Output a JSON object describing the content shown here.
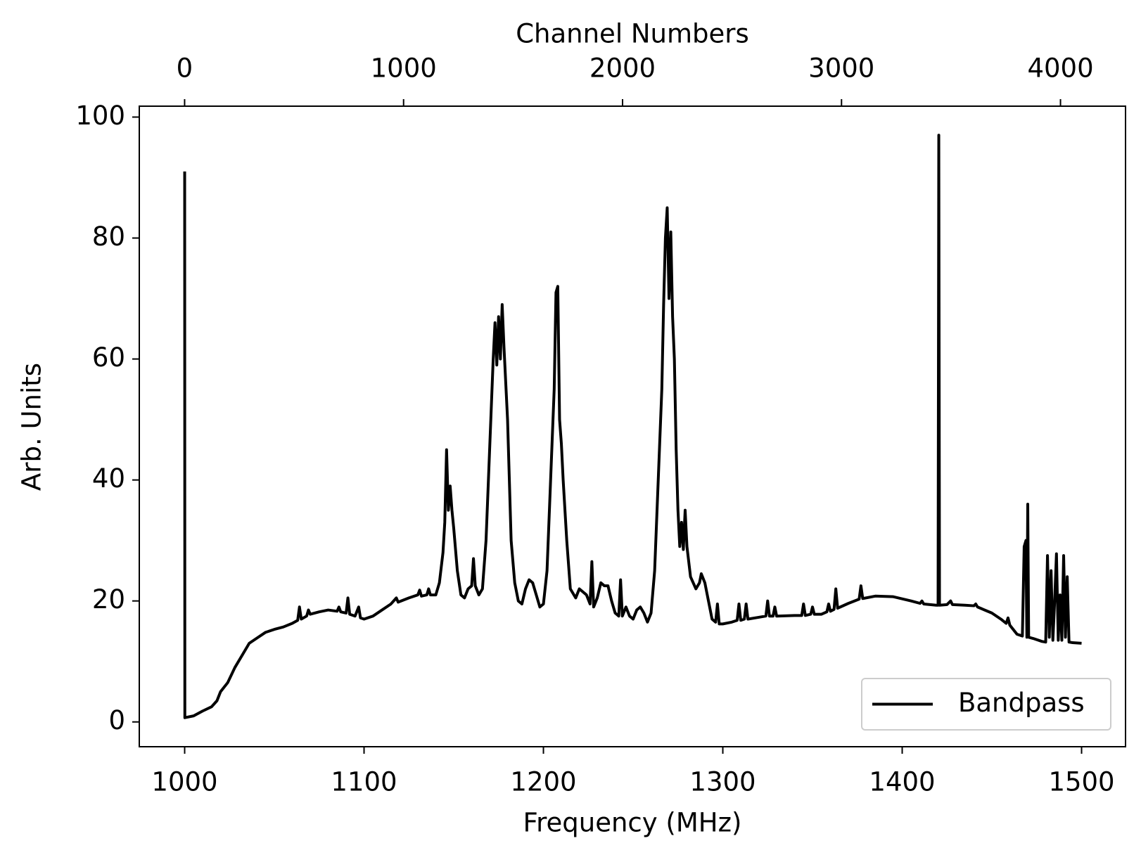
{
  "chart_data": {
    "type": "line",
    "xlabel": "Frequency (MHz)",
    "ylabel": "Arb. Units",
    "x2label": "Channel Numbers",
    "xlim": [
      974.7,
      1524.5
    ],
    "xticks": [
      1000,
      1100,
      1200,
      1300,
      1400,
      1500
    ],
    "x2lim": [
      -207,
      4297
    ],
    "x2ticks": [
      0,
      1000,
      2000,
      3000,
      4000
    ],
    "ylim": [
      -4.1,
      101.8
    ],
    "yticks": [
      0,
      20,
      40,
      60,
      80,
      100
    ],
    "legend": "lower right",
    "grid": false,
    "x": [
      1000,
      1000.1,
      1005,
      1010,
      1015,
      1018,
      1020,
      1024,
      1028,
      1032,
      1036,
      1040,
      1045,
      1050,
      1055,
      1060,
      1063,
      1064,
      1065,
      1068,
      1069,
      1070,
      1075,
      1080,
      1085,
      1086,
      1087,
      1090,
      1091,
      1092,
      1095,
      1097,
      1098,
      1100,
      1105,
      1110,
      1115,
      1118,
      1119,
      1125,
      1130,
      1131,
      1132,
      1135,
      1136,
      1137,
      1140,
      1142,
      1144,
      1145,
      1146,
      1147,
      1148,
      1149,
      1150,
      1152,
      1154,
      1156,
      1158,
      1160,
      1161,
      1162,
      1164,
      1166,
      1168,
      1170,
      1172,
      1173,
      1174,
      1175,
      1176,
      1177,
      1178,
      1180,
      1182,
      1184,
      1186,
      1188,
      1190,
      1192,
      1194,
      1196,
      1198,
      1200,
      1202,
      1204,
      1206,
      1207,
      1208,
      1209,
      1210,
      1211,
      1213,
      1215,
      1218,
      1220,
      1222,
      1224,
      1226,
      1227,
      1228,
      1230,
      1232,
      1234,
      1236,
      1238,
      1240,
      1242,
      1243,
      1244,
      1246,
      1248,
      1250,
      1252,
      1254,
      1256,
      1258,
      1260,
      1262,
      1264,
      1266,
      1267,
      1268,
      1269,
      1270,
      1271,
      1272,
      1273,
      1274,
      1275,
      1276,
      1277,
      1278,
      1279,
      1280,
      1282,
      1285,
      1287,
      1288,
      1290,
      1292,
      1294,
      1296,
      1297,
      1298,
      1300,
      1305,
      1308,
      1309,
      1310,
      1312,
      1313,
      1314,
      1320,
      1324,
      1325,
      1326,
      1328,
      1329,
      1330,
      1340,
      1344,
      1345,
      1346,
      1349,
      1350,
      1351,
      1355,
      1358,
      1359,
      1360,
      1362,
      1363,
      1364,
      1370,
      1376,
      1377,
      1378,
      1385,
      1395,
      1405,
      1410,
      1411,
      1412,
      1419,
      1420,
      1420.4,
      1420.8,
      1425,
      1427,
      1428,
      1435,
      1440,
      1441,
      1442,
      1450,
      1455,
      1458,
      1459,
      1460,
      1464,
      1467,
      1468,
      1469,
      1469.5,
      1470,
      1470.5,
      1473,
      1478,
      1480,
      1481,
      1482,
      1483,
      1484,
      1485,
      1486,
      1487,
      1488,
      1489,
      1490,
      1491,
      1492,
      1493,
      1495,
      1500
    ],
    "series": [
      {
        "name": "Bandpass",
        "color": "#000000",
        "values": [
          91,
          0.7,
          1.0,
          1.8,
          2.5,
          3.5,
          5,
          6.5,
          9,
          11,
          13,
          13.8,
          14.8,
          15.3,
          15.7,
          16.3,
          16.8,
          19,
          17,
          17.5,
          18.5,
          17.8,
          18.2,
          18.5,
          18.3,
          19,
          18.2,
          18,
          20.5,
          17.8,
          17.5,
          19,
          17.2,
          17,
          17.5,
          18.5,
          19.5,
          20.5,
          19.8,
          20.5,
          21,
          21.8,
          20.8,
          21,
          22,
          21,
          21,
          23,
          28,
          33,
          45,
          35,
          39,
          35,
          32,
          25,
          21,
          20.5,
          22,
          22.5,
          27,
          22.5,
          21,
          22,
          30,
          45,
          60,
          66,
          59,
          67,
          60,
          69,
          62,
          50,
          30,
          23,
          20,
          19.5,
          22,
          23.5,
          23,
          21,
          19,
          19.5,
          25,
          40,
          55,
          71,
          72,
          50,
          46,
          40,
          30,
          22,
          20.5,
          22,
          21.5,
          21,
          19.5,
          26.5,
          19,
          20.5,
          23,
          22.5,
          22.5,
          20,
          18,
          17.5,
          23.5,
          17.5,
          19,
          17.5,
          17,
          18.5,
          19,
          18,
          16.5,
          18,
          25,
          40,
          55,
          69,
          80,
          85,
          70,
          81,
          67,
          60,
          45,
          35,
          29,
          33,
          28.5,
          35,
          29,
          24,
          22,
          23,
          24.5,
          23,
          20,
          17,
          16.5,
          19.5,
          16.2,
          16.2,
          16.5,
          16.8,
          19.5,
          16.8,
          17,
          19.5,
          17,
          17.3,
          17.5,
          20,
          17.5,
          17.5,
          19,
          17.5,
          17.6,
          17.6,
          19.5,
          17.6,
          17.8,
          19,
          17.8,
          17.8,
          18.2,
          19.5,
          18.3,
          18.6,
          22,
          18.8,
          19.6,
          20.3,
          22.5,
          20.4,
          20.8,
          20.7,
          20,
          19.6,
          20,
          19.5,
          19.3,
          19.3,
          97,
          19.3,
          19.4,
          20,
          19.4,
          19.3,
          19.2,
          19.5,
          19,
          18,
          17,
          16.3,
          17.2,
          16,
          14.5,
          14.2,
          29,
          30,
          14,
          36,
          14,
          13.8,
          13.3,
          13.2,
          27.5,
          14,
          25,
          13.5,
          20,
          27.8,
          13.5,
          21,
          13.5,
          27.5,
          14,
          24,
          13.2,
          13.1,
          13
        ]
      }
    ]
  }
}
